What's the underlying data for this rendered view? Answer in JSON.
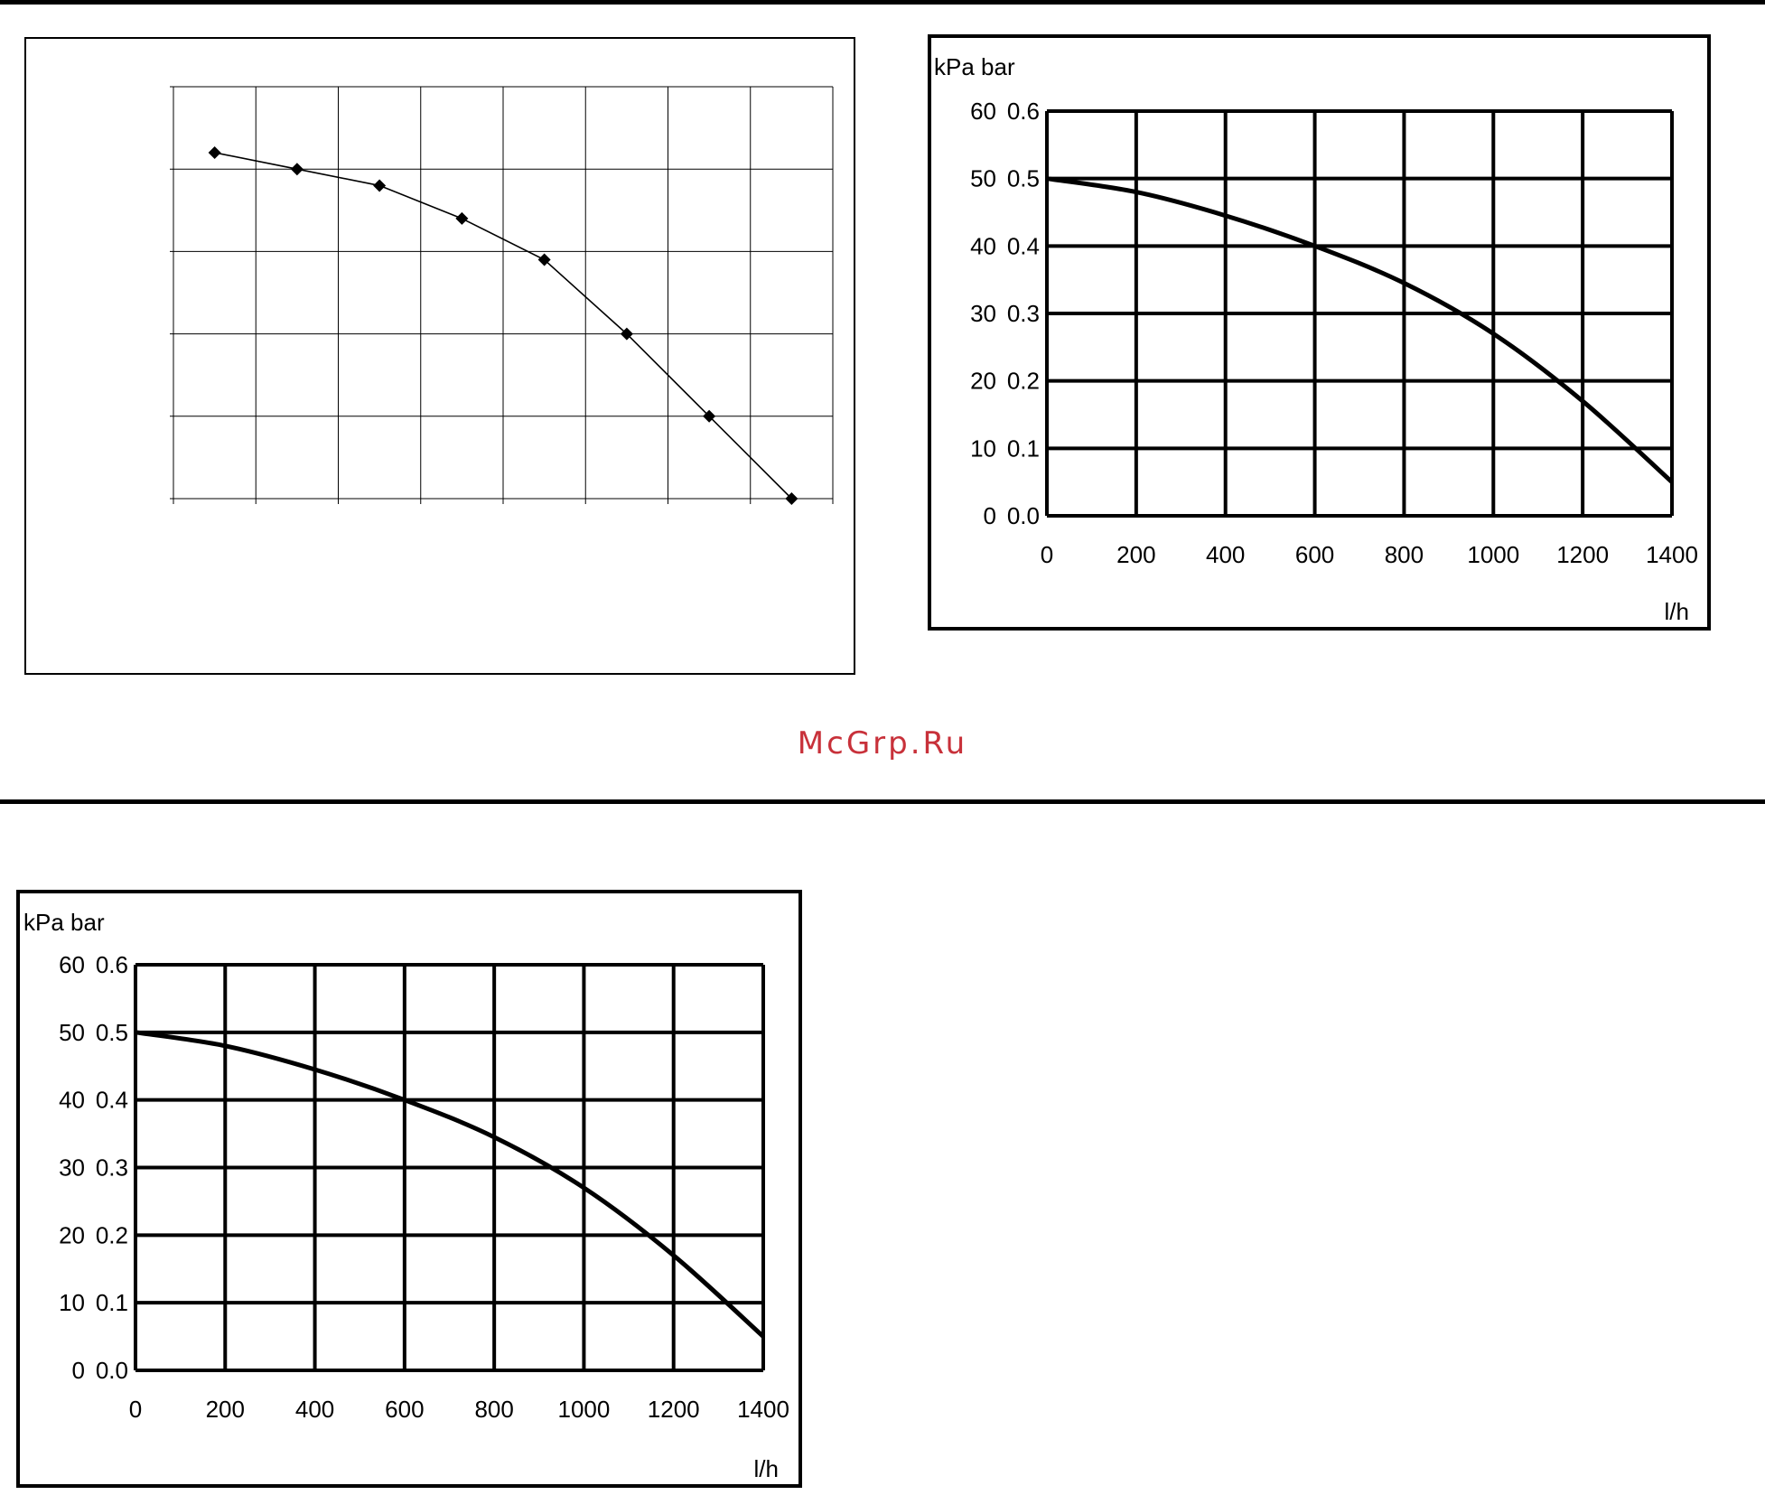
{
  "watermark": {
    "text": "McGrp.Ru",
    "color": "#c8313a"
  },
  "chart_data": [
    {
      "type": "line",
      "markers": "diamond",
      "grid": true,
      "tick_labels_visible": false,
      "x": [
        0.5,
        1.5,
        2.5,
        3.5,
        4.5,
        5.5,
        6.5,
        7.5
      ],
      "series": [
        {
          "values": [
            4.2,
            4.0,
            3.8,
            3.4,
            2.9,
            2.0,
            1.0,
            0.0
          ]
        }
      ],
      "xlim": [
        0,
        8
      ],
      "ylim": [
        0,
        5
      ],
      "title": "",
      "xlabel": "",
      "ylabel": ""
    },
    {
      "type": "line",
      "grid": true,
      "x": [
        0,
        200,
        400,
        600,
        800,
        1000,
        1200,
        1400
      ],
      "series": [
        {
          "values": [
            50,
            48,
            44.5,
            40,
            34.5,
            27,
            17,
            5
          ]
        }
      ],
      "xlim": [
        0,
        1400
      ],
      "ylim": [
        0,
        60
      ],
      "x_ticks": [
        "0",
        "200",
        "400",
        "600",
        "800",
        "1000",
        "1200",
        "1400"
      ],
      "y_ticks_kpa": [
        "0",
        "10",
        "20",
        "30",
        "40",
        "50",
        "60"
      ],
      "y_ticks_bar": [
        "0.0",
        "0.1",
        "0.2",
        "0.3",
        "0.4",
        "0.5",
        "0.6"
      ],
      "ylabel": "kPa bar",
      "xlabel": "l/h",
      "title": ""
    },
    {
      "type": "line",
      "grid": true,
      "x": [
        0,
        200,
        400,
        600,
        800,
        1000,
        1200,
        1400
      ],
      "series": [
        {
          "values": [
            50,
            48,
            44.5,
            40,
            34.5,
            27,
            17,
            5
          ]
        }
      ],
      "xlim": [
        0,
        1400
      ],
      "ylim": [
        0,
        60
      ],
      "x_ticks": [
        "0",
        "200",
        "400",
        "600",
        "800",
        "1000",
        "1200",
        "1400"
      ],
      "y_ticks_kpa": [
        "0",
        "10",
        "20",
        "30",
        "40",
        "50",
        "60"
      ],
      "y_ticks_bar": [
        "0.0",
        "0.1",
        "0.2",
        "0.3",
        "0.4",
        "0.5",
        "0.6"
      ],
      "ylabel": "kPa bar",
      "xlabel": "l/h",
      "title": ""
    }
  ]
}
